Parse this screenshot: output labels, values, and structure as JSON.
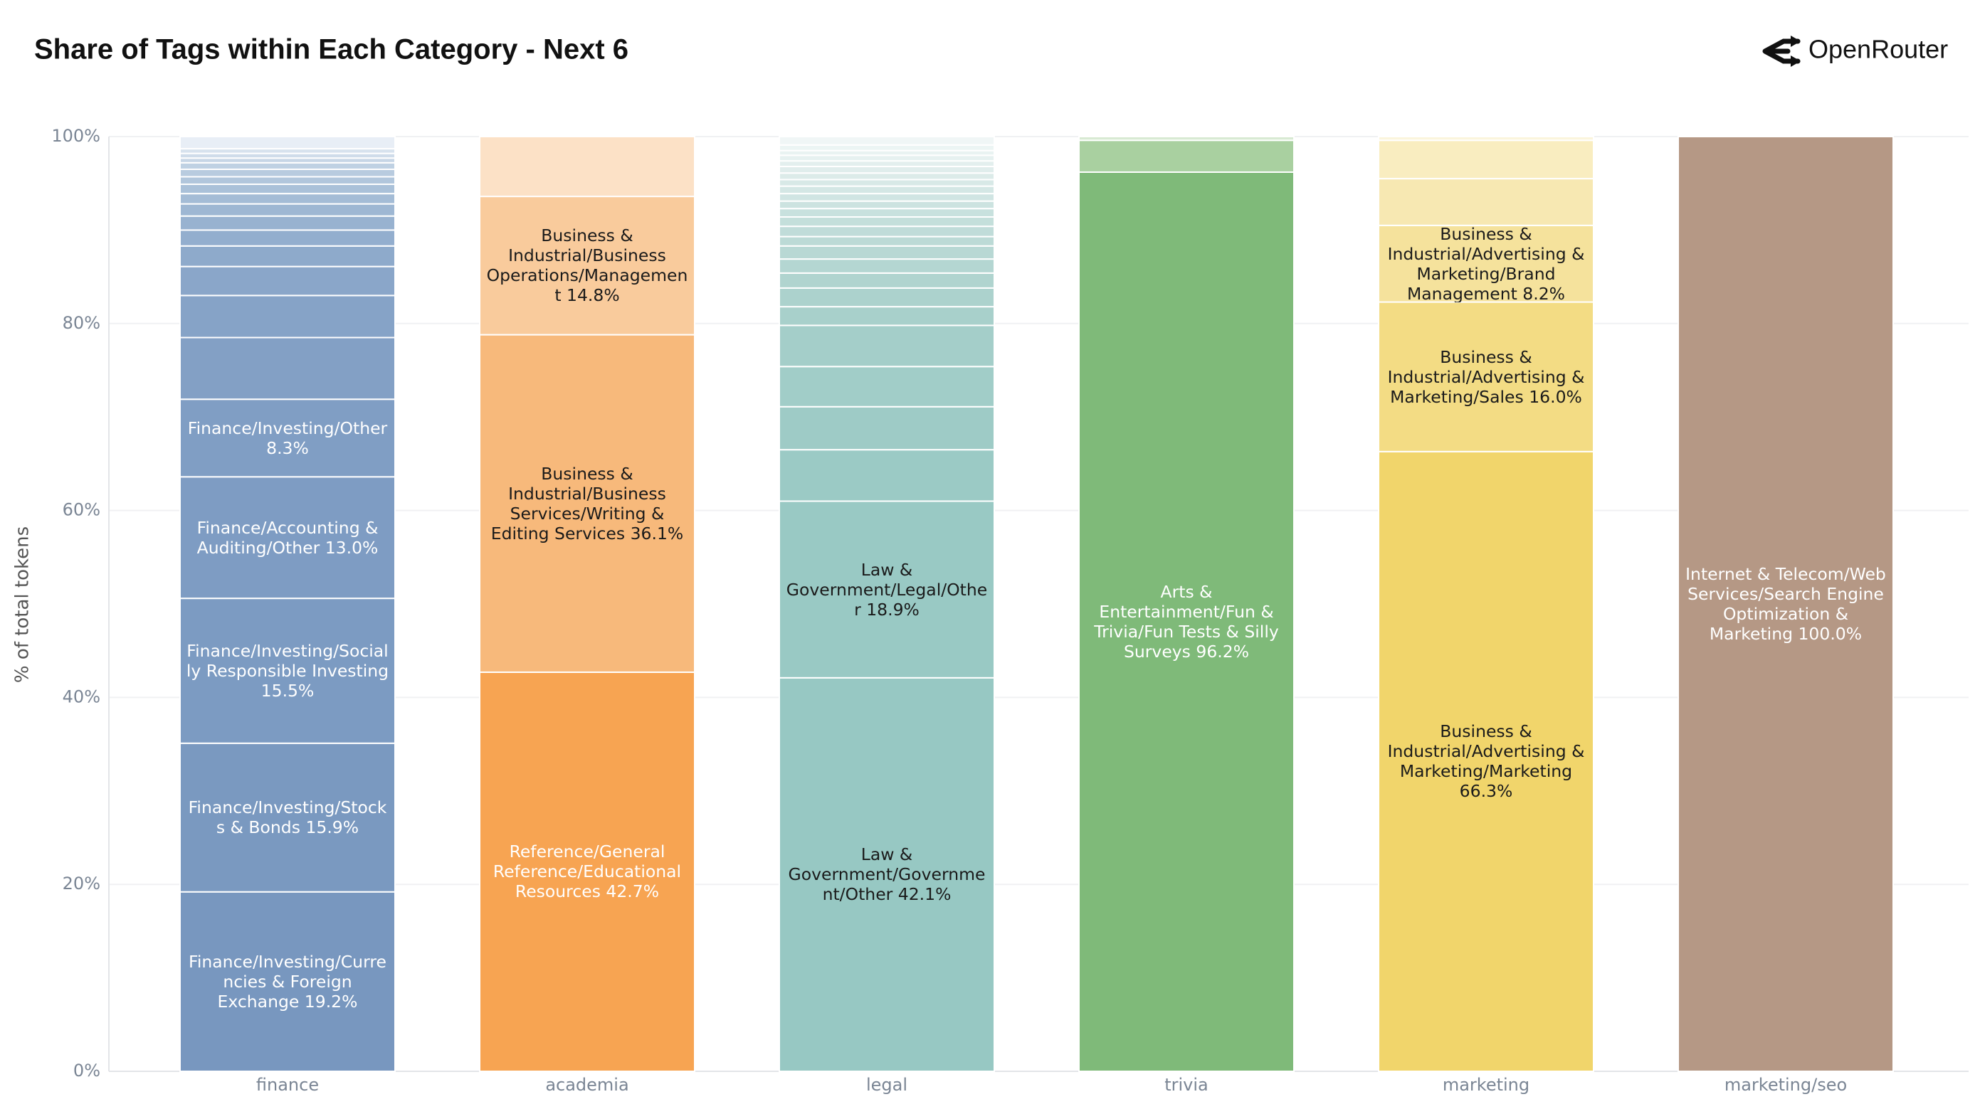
{
  "title": "Share of Tags within Each Category - Next 6",
  "brand": "OpenRouter",
  "chart_data": {
    "type": "stacked_bar",
    "y_label": "% of total tokens",
    "ylim": [
      0,
      100
    ],
    "grid": true,
    "yticks": [
      {
        "value": 0,
        "label": "0%"
      },
      {
        "value": 20,
        "label": "20%"
      },
      {
        "value": 40,
        "label": "40%"
      },
      {
        "value": 60,
        "label": "60%"
      },
      {
        "value": 80,
        "label": "80%"
      },
      {
        "value": 100,
        "label": "100%"
      }
    ],
    "bars": [
      {
        "category": "finance",
        "segments": [
          {
            "value": 19.2,
            "label": "Finance/Investing/Currencies & Foreign Exchange 19.2%",
            "color": "#7897bf",
            "text_color": "#ffffff"
          },
          {
            "value": 15.9,
            "label": "Finance/Investing/Stocks & Bonds 15.9%",
            "color": "#7a99c0",
            "text_color": "#ffffff"
          },
          {
            "value": 15.5,
            "label": "Finance/Investing/Socially Responsible Investing 15.5%",
            "color": "#7c9bc2",
            "text_color": "#ffffff"
          },
          {
            "value": 13.0,
            "label": "Finance/Accounting & Auditing/Other 13.0%",
            "color": "#7e9cc3",
            "text_color": "#ffffff"
          },
          {
            "value": 8.3,
            "label": "Finance/Investing/Other 8.3%",
            "color": "#809ec4",
            "text_color": "#ffffff"
          },
          {
            "value": 6.6,
            "color": "#83a0c5"
          },
          {
            "value": 4.5,
            "color": "#86a3c7"
          },
          {
            "value": 3.1,
            "color": "#8aa6c9"
          },
          {
            "value": 2.2,
            "color": "#8eaacb"
          },
          {
            "value": 1.7,
            "color": "#93aece"
          },
          {
            "value": 1.5,
            "color": "#98b2d0"
          },
          {
            "value": 1.3,
            "color": "#9eb7d3"
          },
          {
            "value": 1.1,
            "color": "#a4bcd6"
          },
          {
            "value": 1.0,
            "color": "#aac1d9"
          },
          {
            "value": 0.8,
            "color": "#b1c6dc"
          },
          {
            "value": 0.8,
            "color": "#b8cbdf"
          },
          {
            "value": 0.7,
            "color": "#bfd1e3"
          },
          {
            "value": 0.5,
            "color": "#c7d6e6"
          },
          {
            "value": 0.5,
            "color": "#cfdcea"
          },
          {
            "value": 0.5,
            "color": "#d7e2ee"
          },
          {
            "value": 1.3,
            "color": "#e8eef6"
          }
        ]
      },
      {
        "category": "academia",
        "segments": [
          {
            "value": 42.7,
            "label": "Reference/General Reference/Educational Resources 42.7%",
            "color": "#f7a452",
            "text_color": "#ffffff"
          },
          {
            "value": 36.1,
            "label": "Business & Industrial/Business Services/Writing & Editing Services 36.1%",
            "color": "#f7b97b",
            "text_color": "#1a1a1a"
          },
          {
            "value": 14.8,
            "label": "Business & Industrial/Business Operations/Management 14.8%",
            "color": "#f9cb9c",
            "text_color": "#1a1a1a"
          },
          {
            "value": 6.4,
            "color": "#fce1c6"
          }
        ]
      },
      {
        "category": "legal",
        "segments": [
          {
            "value": 42.1,
            "label": "Law & Government/Government/Other 42.1%",
            "color": "#97c8c3",
            "text_color": "#1a1a1a"
          },
          {
            "value": 18.9,
            "label": "Law & Government/Legal/Other 18.9%",
            "color": "#99c9c4",
            "text_color": "#1a1a1a"
          },
          {
            "value": 5.5,
            "color": "#9bcac5"
          },
          {
            "value": 4.6,
            "color": "#9ecbc6"
          },
          {
            "value": 4.3,
            "color": "#a1cdc8"
          },
          {
            "value": 4.4,
            "color": "#a4cec9"
          },
          {
            "value": 2.0,
            "color": "#a8d0cb"
          },
          {
            "value": 2.0,
            "color": "#acd2cd"
          },
          {
            "value": 1.6,
            "color": "#b0d4cf"
          },
          {
            "value": 1.5,
            "color": "#b4d6d2"
          },
          {
            "value": 1.4,
            "color": "#b8d8d4"
          },
          {
            "value": 1.0,
            "color": "#bcdad6"
          },
          {
            "value": 1.1,
            "color": "#c0dcd9"
          },
          {
            "value": 1.0,
            "color": "#c4dfdb"
          },
          {
            "value": 0.9,
            "color": "#c8e1de"
          },
          {
            "value": 0.8,
            "color": "#cce3e0"
          },
          {
            "value": 0.8,
            "color": "#d0e5e3"
          },
          {
            "value": 0.8,
            "color": "#d4e7e5"
          },
          {
            "value": 0.7,
            "color": "#d8e9e7"
          },
          {
            "value": 0.7,
            "color": "#dcebe9"
          },
          {
            "value": 0.7,
            "color": "#e0edec"
          },
          {
            "value": 0.6,
            "color": "#e3efee"
          },
          {
            "value": 0.6,
            "color": "#e6f1f0"
          },
          {
            "value": 0.5,
            "color": "#e9f3f2"
          },
          {
            "value": 0.6,
            "color": "#ecf5f4"
          },
          {
            "value": 0.9,
            "color": "#f0f6f6"
          }
        ]
      },
      {
        "category": "trivia",
        "segments": [
          {
            "value": 96.2,
            "label": "Arts & Entertainment/Fun & Trivia/Fun Tests & Silly Surveys 96.2%",
            "color": "#7fba79",
            "text_color": "#ffffff"
          },
          {
            "value": 3.4,
            "color": "#a9d0a0"
          },
          {
            "value": 0.4,
            "color": "#d8ead3"
          }
        ]
      },
      {
        "category": "marketing",
        "segments": [
          {
            "value": 66.3,
            "label": "Business & Industrial/Advertising & Marketing/Marketing 66.3%",
            "color": "#f1d56b",
            "text_color": "#1a1a1a"
          },
          {
            "value": 16.0,
            "label": "Business & Industrial/Advertising & Marketing/Sales 16.0%",
            "color": "#f3dc84",
            "text_color": "#1a1a1a"
          },
          {
            "value": 8.2,
            "label": "Business & Industrial/Advertising & Marketing/Brand Management 8.2%",
            "color": "#f5e29c",
            "text_color": "#1a1a1a"
          },
          {
            "value": 5.0,
            "color": "#f7e8b2"
          },
          {
            "value": 4.1,
            "color": "#f9edc0"
          },
          {
            "value": 0.4,
            "color": "#fbf5dc"
          }
        ]
      },
      {
        "category": "marketing/seo",
        "segments": [
          {
            "value": 100.0,
            "label": "Internet & Telecom/Web Services/Search Engine Optimization & Marketing 100.0%",
            "color": "#b59885",
            "text_color": "#ffffff"
          }
        ]
      }
    ]
  }
}
